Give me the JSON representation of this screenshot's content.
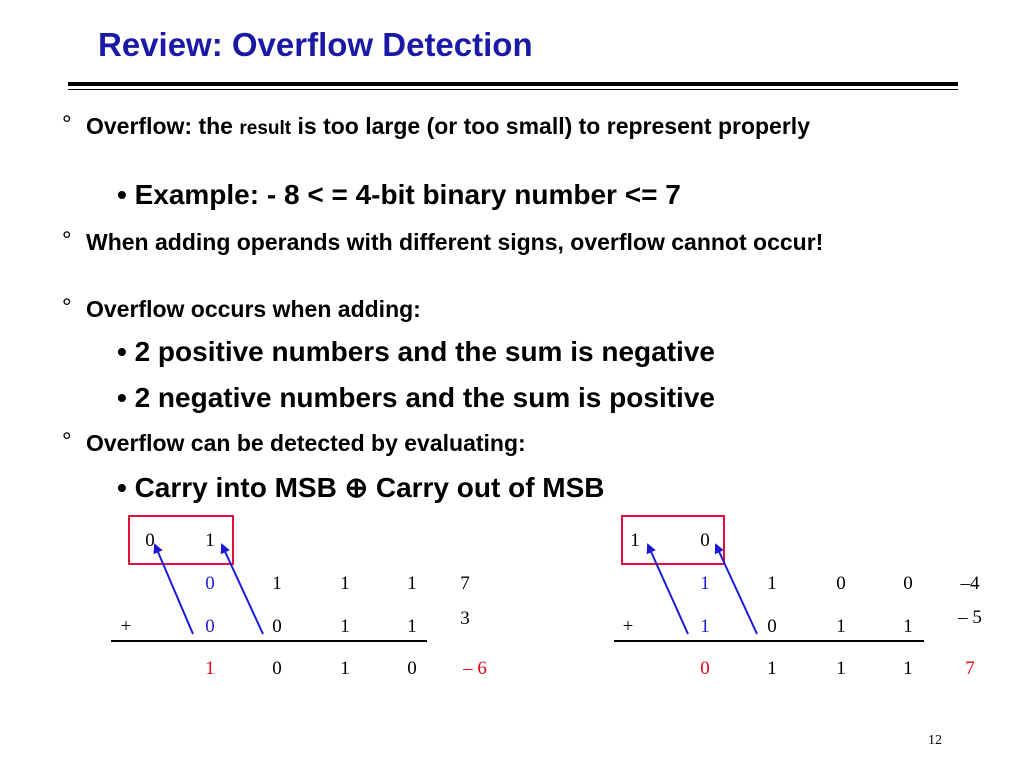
{
  "title": "Review: Overflow Detection",
  "bullets": {
    "b1_pre": "Overflow: the ",
    "b1_small": "result",
    "b1_post": " is too large (or too small) to represent properly",
    "b1_sub": "• Example: - 8 < = 4-bit binary number <= 7",
    "b2": "When adding operands with different signs, overflow cannot occur!",
    "b3": "Overflow occurs when adding:",
    "b3_sub1": "• 2 positive numbers and the sum is negative",
    "b3_sub2": "• 2 negative numbers and the sum is positive",
    "b4": "Overflow can be detected by evaluating:",
    "b4_sub": "• Carry into MSB ⊕ Carry out of MSB",
    "marker": "°"
  },
  "example_left": {
    "carry": [
      "0",
      "1"
    ],
    "row1": [
      "0",
      "1",
      "1",
      "1"
    ],
    "row1_value": "7",
    "plus": "+",
    "row2": [
      "0",
      "0",
      "1",
      "1"
    ],
    "row2_value": "3",
    "sum": [
      "1",
      "0",
      "1",
      "0"
    ],
    "sum_value": "– 6"
  },
  "example_right": {
    "carry": [
      "1",
      "0"
    ],
    "row1": [
      "1",
      "1",
      "0",
      "0"
    ],
    "row1_value": "–4",
    "plus": "+",
    "row2": [
      "1",
      "0",
      "1",
      "1"
    ],
    "row2_value": "– 5",
    "sum": [
      "0",
      "1",
      "1",
      "1"
    ],
    "sum_value": "7"
  },
  "colors": {
    "title": "#1a1aa6",
    "msb": "#1a1ad6",
    "result": "#e60012",
    "box": "#e0103a"
  },
  "page_number": "12"
}
